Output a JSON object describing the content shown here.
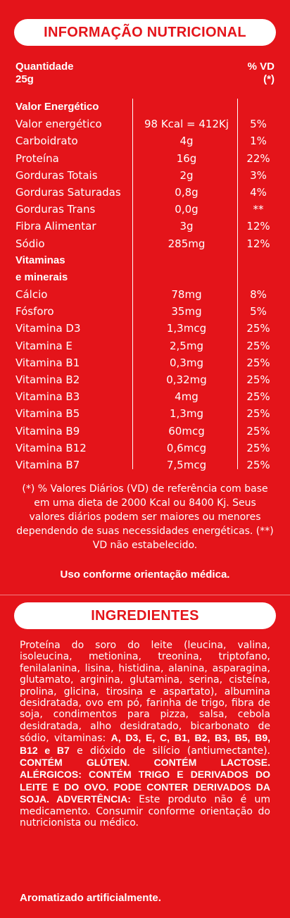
{
  "nutrition": {
    "title": "INFORMAÇÃO NUTRICIONAL",
    "quantity_label": "Quantidade",
    "quantity_value": "25g",
    "vd_label": "% VD",
    "vd_mark": "(*)",
    "rows": [
      {
        "name": "Valor Energético",
        "amount": "",
        "vd": "",
        "section": true
      },
      {
        "name": "Valor energético",
        "amount": "98 Kcal = 412Kj",
        "vd": "5%"
      },
      {
        "name": "Carboidrato",
        "amount": "4g",
        "vd": "1%"
      },
      {
        "name": "Proteína",
        "amount": "16g",
        "vd": "22%"
      },
      {
        "name": "Gorduras Totais",
        "amount": "2g",
        "vd": "3%"
      },
      {
        "name": "Gorduras Saturadas",
        "amount": "0,8g",
        "vd": "4%"
      },
      {
        "name": "Gorduras Trans",
        "amount": "0,0g",
        "vd": "**"
      },
      {
        "name": "Fibra Alimentar",
        "amount": "3g",
        "vd": "12%"
      },
      {
        "name": "Sódio",
        "amount": "285mg",
        "vd": "12%"
      },
      {
        "name": "Vitaminas",
        "amount": "",
        "vd": "",
        "section": true
      },
      {
        "name": "e minerais",
        "amount": "",
        "vd": "",
        "section": true
      },
      {
        "name": "Cálcio",
        "amount": "78mg",
        "vd": "8%"
      },
      {
        "name": "Fósforo",
        "amount": "35mg",
        "vd": "5%"
      },
      {
        "name": "Vitamina D3",
        "amount": "1,3mcg",
        "vd": "25%"
      },
      {
        "name": "Vitamina E",
        "amount": "2,5mg",
        "vd": "25%"
      },
      {
        "name": "Vitamina B1",
        "amount": "0,3mg",
        "vd": "25%"
      },
      {
        "name": "Vitamina B2",
        "amount": "0,32mg",
        "vd": "25%"
      },
      {
        "name": "Vitamina B3",
        "amount": "4mg",
        "vd": "25%"
      },
      {
        "name": "Vitamina B5",
        "amount": "1,3mg",
        "vd": "25%"
      },
      {
        "name": "Vitamina B9",
        "amount": "60mcg",
        "vd": "25%"
      },
      {
        "name": "Vitamina B12",
        "amount": "0,6mcg",
        "vd": "25%"
      },
      {
        "name": "Vitamina B7",
        "amount": "7,5mcg",
        "vd": "25%"
      }
    ],
    "footnote": "(*) % Valores Diários (VD) de referência com base em uma dieta de 2000 Kcal ou 8400 Kj. Seus valores diários podem ser maiores ou menores dependendo de suas necessidades energéticas. (**) VD não estabelecido.",
    "usage": "Uso conforme orientação médica."
  },
  "ingredients": {
    "title": "INGREDIENTES",
    "parts": [
      {
        "text": "Proteína do soro do leite (leucina, valina, isoleucina, metionina, treonina, triptofano, fenilalanina, lisina, histidina, alanina, asparagina, glutamato, arginina, glutamina, serina, cisteína, prolina, glicina, tirosina e aspartato), albumina desidratada, ovo em pó, farinha de trigo, fibra de soja, condimentos para pizza, salsa, cebola desidratada, alho desidratado, bicarbonato de sódio, vitaminas: ",
        "bold": false
      },
      {
        "text": "A, D3, E, C, B1, B2, B3, B5, B9, B12 e B7",
        "bold": true
      },
      {
        "text": " e dióxido de silício (antiumectante). ",
        "bold": false
      },
      {
        "text": "CONTÉM GLÚTEN. CONTÉM LACTOSE. ALÉRGICOS: CONTÉM TRIGO E DERIVADOS DO LEITE E DO OVO. PODE CONTER DERIVADOS DA SOJA. ADVERTÊNCIA:",
        "bold": true
      },
      {
        "text": " Este produto não é um medicamento. Consumir conforme orientação do nutricionista ou médico.",
        "bold": false
      }
    ],
    "flavor": "Aromatizado artificialmente."
  },
  "colors": {
    "background": "#e4141a",
    "text": "#ffffff"
  }
}
